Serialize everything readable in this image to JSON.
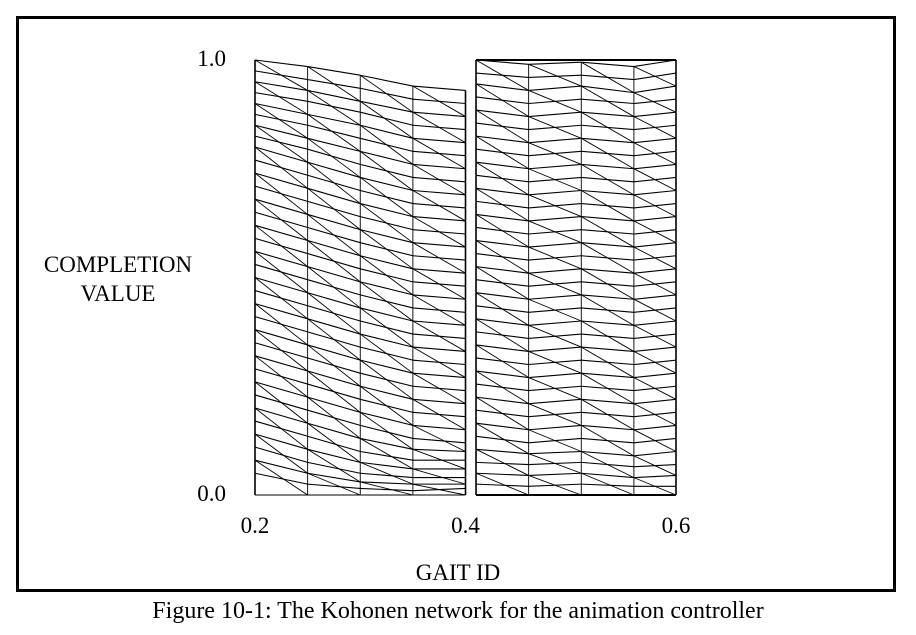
{
  "caption": "Figure 10-1: The Kohonen network for the animation controller",
  "chart_data": {
    "type": "line",
    "description_note": "",
    "xlabel": "GAIT ID",
    "ylabel_lines": [
      "COMPLETION",
      "VALUE"
    ],
    "xlim": [
      0.2,
      0.6
    ],
    "ylim": [
      0.0,
      1.0
    ],
    "xticks": [
      {
        "value": 0.2,
        "label": "0.2"
      },
      {
        "value": 0.4,
        "label": "0.4"
      },
      {
        "value": 0.6,
        "label": "0.6"
      }
    ],
    "yticks": [
      {
        "value": 0.0,
        "label": "0.0"
      },
      {
        "value": 1.0,
        "label": "1.0"
      }
    ],
    "grid": false,
    "line_color": "#000000",
    "columns": [
      {
        "x": 0.2,
        "y": [
          1.0,
          0.975,
          0.95,
          0.925,
          0.9,
          0.875,
          0.85,
          0.825,
          0.8,
          0.77,
          0.74,
          0.71,
          0.68,
          0.65,
          0.62,
          0.59,
          0.56,
          0.53,
          0.5,
          0.47,
          0.44,
          0.41,
          0.38,
          0.35,
          0.32,
          0.29,
          0.26,
          0.23,
          0.2,
          0.17,
          0.14,
          0.11,
          0.08,
          0.05,
          0.0
        ]
      },
      {
        "x": 0.25,
        "y": [
          0.985,
          0.955,
          0.93,
          0.905,
          0.875,
          0.85,
          0.82,
          0.795,
          0.765,
          0.735,
          0.705,
          0.675,
          0.645,
          0.615,
          0.585,
          0.555,
          0.525,
          0.495,
          0.465,
          0.435,
          0.405,
          0.375,
          0.345,
          0.315,
          0.285,
          0.255,
          0.225,
          0.195,
          0.165,
          0.135,
          0.105,
          0.075,
          0.05,
          0.025,
          0.0
        ]
      },
      {
        "x": 0.3,
        "y": [
          0.965,
          0.935,
          0.905,
          0.88,
          0.85,
          0.82,
          0.79,
          0.76,
          0.73,
          0.7,
          0.67,
          0.64,
          0.61,
          0.58,
          0.55,
          0.52,
          0.49,
          0.46,
          0.43,
          0.4,
          0.37,
          0.34,
          0.31,
          0.28,
          0.25,
          0.22,
          0.19,
          0.16,
          0.13,
          0.1,
          0.075,
          0.05,
          0.03,
          0.015,
          0.0
        ]
      },
      {
        "x": 0.35,
        "y": [
          0.94,
          0.91,
          0.88,
          0.85,
          0.82,
          0.79,
          0.76,
          0.73,
          0.7,
          0.67,
          0.64,
          0.61,
          0.58,
          0.55,
          0.52,
          0.49,
          0.46,
          0.43,
          0.4,
          0.37,
          0.34,
          0.31,
          0.28,
          0.25,
          0.22,
          0.19,
          0.16,
          0.13,
          0.105,
          0.08,
          0.06,
          0.04,
          0.025,
          0.01,
          0.0
        ]
      },
      {
        "x": 0.4,
        "y": [
          0.93,
          0.9,
          0.87,
          0.84,
          0.81,
          0.78,
          0.75,
          0.72,
          0.69,
          0.66,
          0.63,
          0.6,
          0.57,
          0.54,
          0.51,
          0.48,
          0.45,
          0.42,
          0.39,
          0.36,
          0.33,
          0.3,
          0.27,
          0.24,
          0.21,
          0.18,
          0.15,
          0.12,
          0.1,
          0.08,
          0.06,
          0.04,
          0.025,
          0.015,
          0.0
        ]
      },
      {
        "x": 0.41,
        "y": [
          1.0,
          0.97,
          0.945,
          0.915,
          0.885,
          0.855,
          0.825,
          0.795,
          0.765,
          0.735,
          0.705,
          0.675,
          0.645,
          0.615,
          0.585,
          0.555,
          0.525,
          0.495,
          0.465,
          0.435,
          0.405,
          0.375,
          0.345,
          0.315,
          0.285,
          0.255,
          0.225,
          0.195,
          0.165,
          0.135,
          0.105,
          0.075,
          0.05,
          0.025,
          0.0
        ]
      },
      {
        "x": 0.46,
        "y": [
          0.99,
          0.96,
          0.93,
          0.9,
          0.87,
          0.84,
          0.81,
          0.78,
          0.75,
          0.72,
          0.69,
          0.66,
          0.63,
          0.6,
          0.57,
          0.54,
          0.51,
          0.48,
          0.45,
          0.42,
          0.39,
          0.36,
          0.33,
          0.3,
          0.27,
          0.24,
          0.21,
          0.18,
          0.15,
          0.12,
          0.095,
          0.07,
          0.045,
          0.02,
          0.0
        ]
      },
      {
        "x": 0.51,
        "y": [
          0.995,
          0.965,
          0.94,
          0.91,
          0.88,
          0.85,
          0.82,
          0.79,
          0.76,
          0.73,
          0.7,
          0.67,
          0.64,
          0.61,
          0.58,
          0.55,
          0.52,
          0.49,
          0.46,
          0.43,
          0.4,
          0.37,
          0.34,
          0.31,
          0.28,
          0.25,
          0.22,
          0.19,
          0.16,
          0.13,
          0.1,
          0.075,
          0.05,
          0.025,
          0.0
        ]
      },
      {
        "x": 0.56,
        "y": [
          0.985,
          0.955,
          0.925,
          0.9,
          0.87,
          0.84,
          0.81,
          0.78,
          0.75,
          0.72,
          0.69,
          0.66,
          0.63,
          0.6,
          0.57,
          0.54,
          0.51,
          0.48,
          0.45,
          0.42,
          0.39,
          0.36,
          0.33,
          0.3,
          0.27,
          0.24,
          0.21,
          0.18,
          0.15,
          0.12,
          0.09,
          0.065,
          0.04,
          0.02,
          0.0
        ]
      },
      {
        "x": 0.6,
        "y": [
          1.0,
          0.97,
          0.94,
          0.91,
          0.88,
          0.85,
          0.82,
          0.79,
          0.76,
          0.73,
          0.7,
          0.67,
          0.64,
          0.61,
          0.58,
          0.55,
          0.52,
          0.49,
          0.46,
          0.43,
          0.4,
          0.37,
          0.34,
          0.31,
          0.28,
          0.25,
          0.22,
          0.19,
          0.16,
          0.13,
          0.1,
          0.07,
          0.045,
          0.02,
          0.0
        ]
      }
    ]
  }
}
